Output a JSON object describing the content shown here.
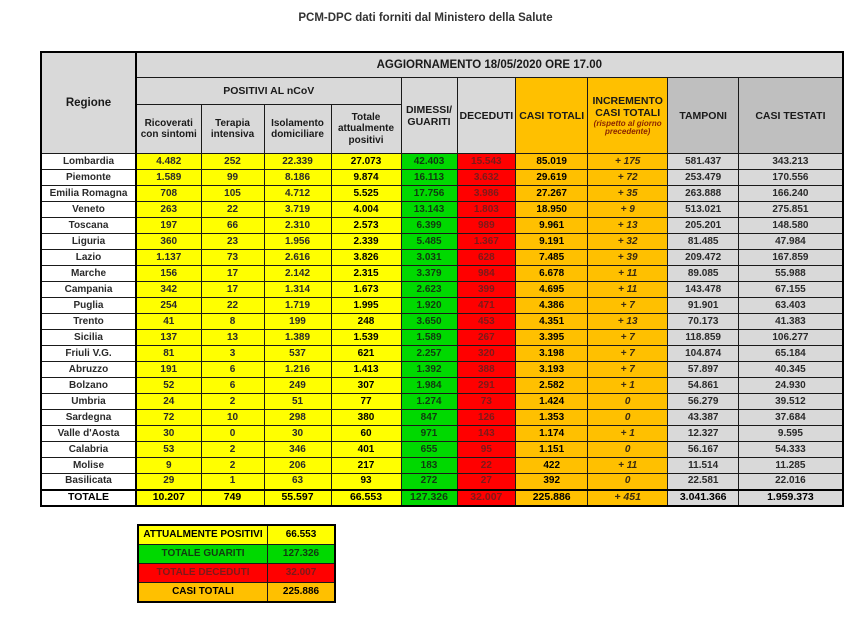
{
  "title": "PCM-DPC dati forniti dal Ministero della Salute",
  "colors": {
    "yellow": "#FFFF00",
    "green": "#00D900",
    "red": "#FF0000",
    "orange": "#FFC000",
    "header_gray": "#D9D9D9",
    "header_dark_gray": "#BFBFBF",
    "cell_gray": "#D9D9D9"
  },
  "table": {
    "update_header": "AGGIORNAMENTO 18/05/2020 ORE 17.00",
    "col_headers": {
      "regione": "Regione",
      "positivi_group": "POSITIVI AL nCoV",
      "ricoverati": "Ricoverati con sintomi",
      "terapia": "Terapia intensiva",
      "isolamento": "Isolamento domiciliare",
      "totale_positivi": "Totale attualmente positivi",
      "dimessi": "DIMESSI/ GUARITI",
      "deceduti": "DECEDUTI",
      "casi_totali": "CASI TOTALI",
      "incremento": "INCREMENTO CASI TOTALI",
      "incremento_note": "(rispetto al giorno precedente)",
      "tamponi": "TAMPONI",
      "casi_testati": "CASI TESTATI"
    },
    "rows": [
      {
        "regione": "Lombardia",
        "values": [
          "4.482",
          "252",
          "22.339",
          "27.073",
          "42.403",
          "15.543",
          "85.019",
          "+ 175",
          "581.437",
          "343.213"
        ]
      },
      {
        "regione": "Piemonte",
        "values": [
          "1.589",
          "99",
          "8.186",
          "9.874",
          "16.113",
          "3.632",
          "29.619",
          "+ 72",
          "253.479",
          "170.556"
        ]
      },
      {
        "regione": "Emilia Romagna",
        "values": [
          "708",
          "105",
          "4.712",
          "5.525",
          "17.756",
          "3.986",
          "27.267",
          "+ 35",
          "263.888",
          "166.240"
        ]
      },
      {
        "regione": "Veneto",
        "values": [
          "263",
          "22",
          "3.719",
          "4.004",
          "13.143",
          "1.803",
          "18.950",
          "+ 9",
          "513.021",
          "275.851"
        ]
      },
      {
        "regione": "Toscana",
        "values": [
          "197",
          "66",
          "2.310",
          "2.573",
          "6.399",
          "989",
          "9.961",
          "+ 13",
          "205.201",
          "148.580"
        ]
      },
      {
        "regione": "Liguria",
        "values": [
          "360",
          "23",
          "1.956",
          "2.339",
          "5.485",
          "1.367",
          "9.191",
          "+ 32",
          "81.485",
          "47.984"
        ]
      },
      {
        "regione": "Lazio",
        "values": [
          "1.137",
          "73",
          "2.616",
          "3.826",
          "3.031",
          "628",
          "7.485",
          "+ 39",
          "209.472",
          "167.859"
        ]
      },
      {
        "regione": "Marche",
        "values": [
          "156",
          "17",
          "2.142",
          "2.315",
          "3.379",
          "984",
          "6.678",
          "+ 11",
          "89.085",
          "55.988"
        ]
      },
      {
        "regione": "Campania",
        "values": [
          "342",
          "17",
          "1.314",
          "1.673",
          "2.623",
          "399",
          "4.695",
          "+ 11",
          "143.478",
          "67.155"
        ]
      },
      {
        "regione": "Puglia",
        "values": [
          "254",
          "22",
          "1.719",
          "1.995",
          "1.920",
          "471",
          "4.386",
          "+ 7",
          "91.901",
          "63.403"
        ]
      },
      {
        "regione": "Trento",
        "values": [
          "41",
          "8",
          "199",
          "248",
          "3.650",
          "453",
          "4.351",
          "+ 13",
          "70.173",
          "41.383"
        ]
      },
      {
        "regione": "Sicilia",
        "values": [
          "137",
          "13",
          "1.389",
          "1.539",
          "1.589",
          "267",
          "3.395",
          "+ 7",
          "118.859",
          "106.277"
        ]
      },
      {
        "regione": "Friuli V.G.",
        "values": [
          "81",
          "3",
          "537",
          "621",
          "2.257",
          "320",
          "3.198",
          "+ 7",
          "104.874",
          "65.184"
        ]
      },
      {
        "regione": "Abruzzo",
        "values": [
          "191",
          "6",
          "1.216",
          "1.413",
          "1.392",
          "388",
          "3.193",
          "+ 7",
          "57.897",
          "40.345"
        ]
      },
      {
        "regione": "Bolzano",
        "values": [
          "52",
          "6",
          "249",
          "307",
          "1.984",
          "291",
          "2.582",
          "+ 1",
          "54.861",
          "24.930"
        ]
      },
      {
        "regione": "Umbria",
        "values": [
          "24",
          "2",
          "51",
          "77",
          "1.274",
          "73",
          "1.424",
          "0",
          "56.279",
          "39.512"
        ]
      },
      {
        "regione": "Sardegna",
        "values": [
          "72",
          "10",
          "298",
          "380",
          "847",
          "126",
          "1.353",
          "0",
          "43.387",
          "37.684"
        ]
      },
      {
        "regione": "Valle d'Aosta",
        "values": [
          "30",
          "0",
          "30",
          "60",
          "971",
          "143",
          "1.174",
          "+ 1",
          "12.327",
          "9.595"
        ]
      },
      {
        "regione": "Calabria",
        "values": [
          "53",
          "2",
          "346",
          "401",
          "655",
          "95",
          "1.151",
          "0",
          "56.167",
          "54.333"
        ]
      },
      {
        "regione": "Molise",
        "values": [
          "9",
          "2",
          "206",
          "217",
          "183",
          "22",
          "422",
          "+ 11",
          "11.514",
          "11.285"
        ]
      },
      {
        "regione": "Basilicata",
        "values": [
          "29",
          "1",
          "63",
          "93",
          "272",
          "27",
          "392",
          "0",
          "22.581",
          "22.016"
        ]
      }
    ],
    "total_row": {
      "regione": "TOTALE",
      "values": [
        "10.207",
        "749",
        "55.597",
        "66.553",
        "127.326",
        "32.007",
        "225.886",
        "+ 451",
        "3.041.366",
        "1.959.373"
      ]
    }
  },
  "summary": {
    "rows": [
      {
        "label": "ATTUALMENTE POSITIVI",
        "value": "66.553",
        "color": "#FFFF00",
        "text_color": "#000000"
      },
      {
        "label": "TOTALE GUARITI",
        "value": "127.326",
        "color": "#00D900",
        "text_color": "#113911"
      },
      {
        "label": "TOTALE DECEDUTI",
        "value": "32.007",
        "color": "#FF0000",
        "text_color": "#7b1a1a"
      },
      {
        "label": "CASI TOTALI",
        "value": "225.886",
        "color": "#FFC000",
        "text_color": "#000000"
      }
    ]
  }
}
